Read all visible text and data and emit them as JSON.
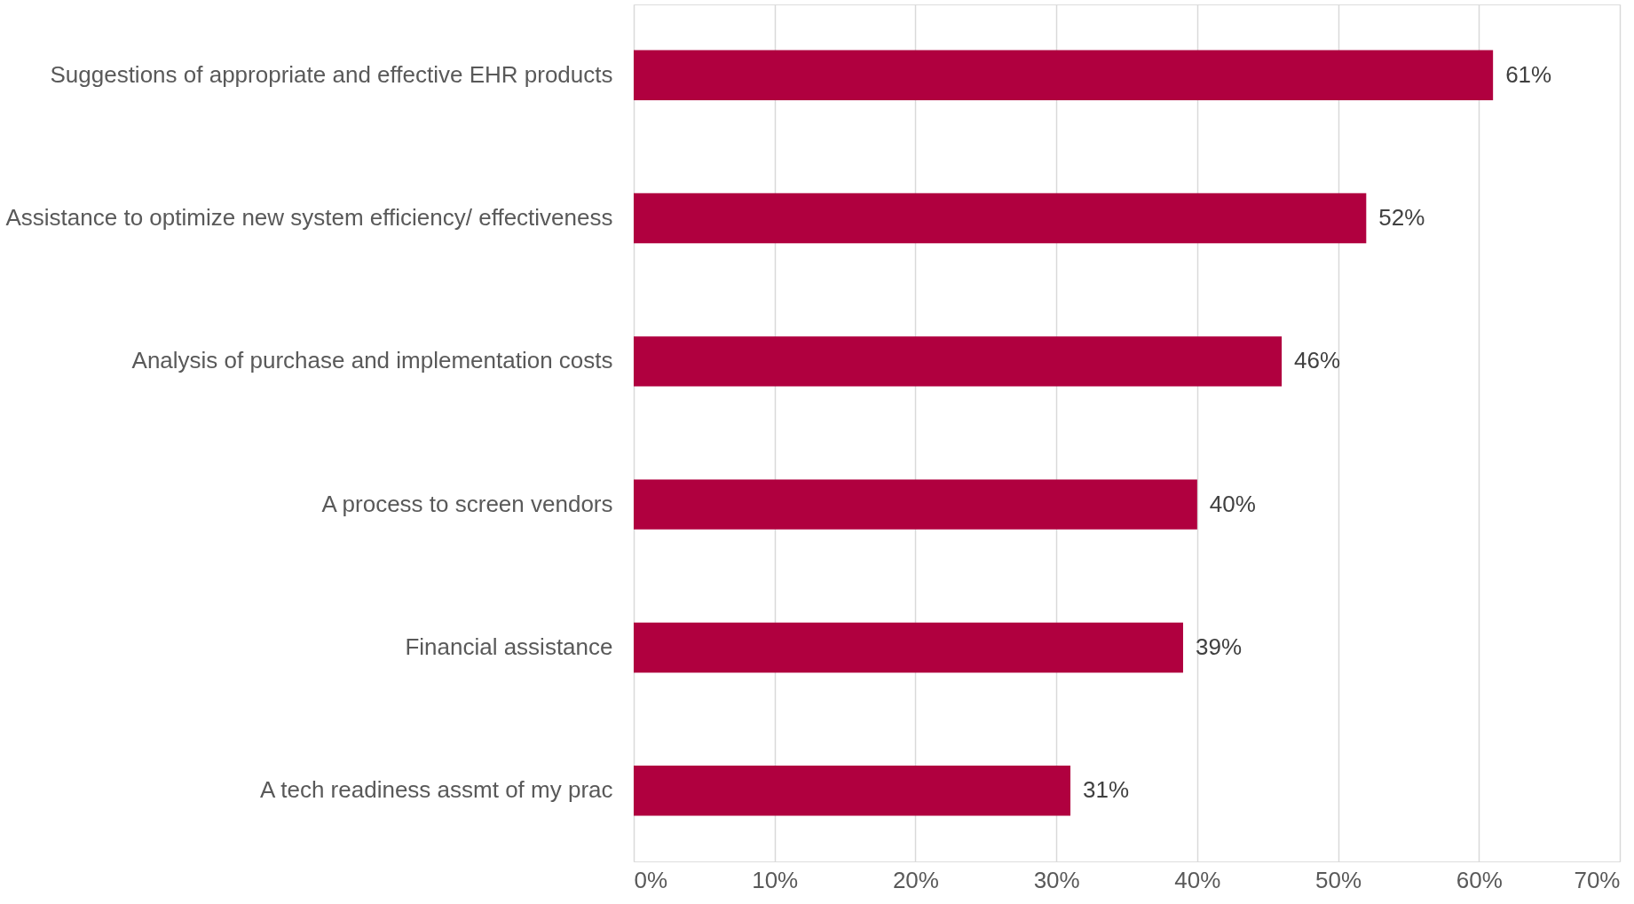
{
  "chart_data": {
    "type": "bar",
    "orientation": "horizontal",
    "categories": [
      "Suggestions of appropriate and effective EHR products",
      "Assistance to optimize new system efficiency/ effectiveness",
      "Analysis of purchase and implementation costs",
      "A process to screen vendors",
      "Financial assistance",
      "A tech readiness assmt of my prac"
    ],
    "values": [
      61,
      52,
      46,
      40,
      39,
      31
    ],
    "value_labels": [
      "61%",
      "52%",
      "46%",
      "40%",
      "39%",
      "31%"
    ],
    "color": "#b0003f",
    "xlim": [
      0,
      70
    ],
    "xticks": [
      {
        "value": 0,
        "label": "0%"
      },
      {
        "value": 10,
        "label": "10%"
      },
      {
        "value": 20,
        "label": "20%"
      },
      {
        "value": 30,
        "label": "30%"
      },
      {
        "value": 40,
        "label": "40%"
      },
      {
        "value": 50,
        "label": "50%"
      },
      {
        "value": 60,
        "label": "60%"
      },
      {
        "value": 70,
        "label": "70%"
      }
    ],
    "grid": "x"
  }
}
